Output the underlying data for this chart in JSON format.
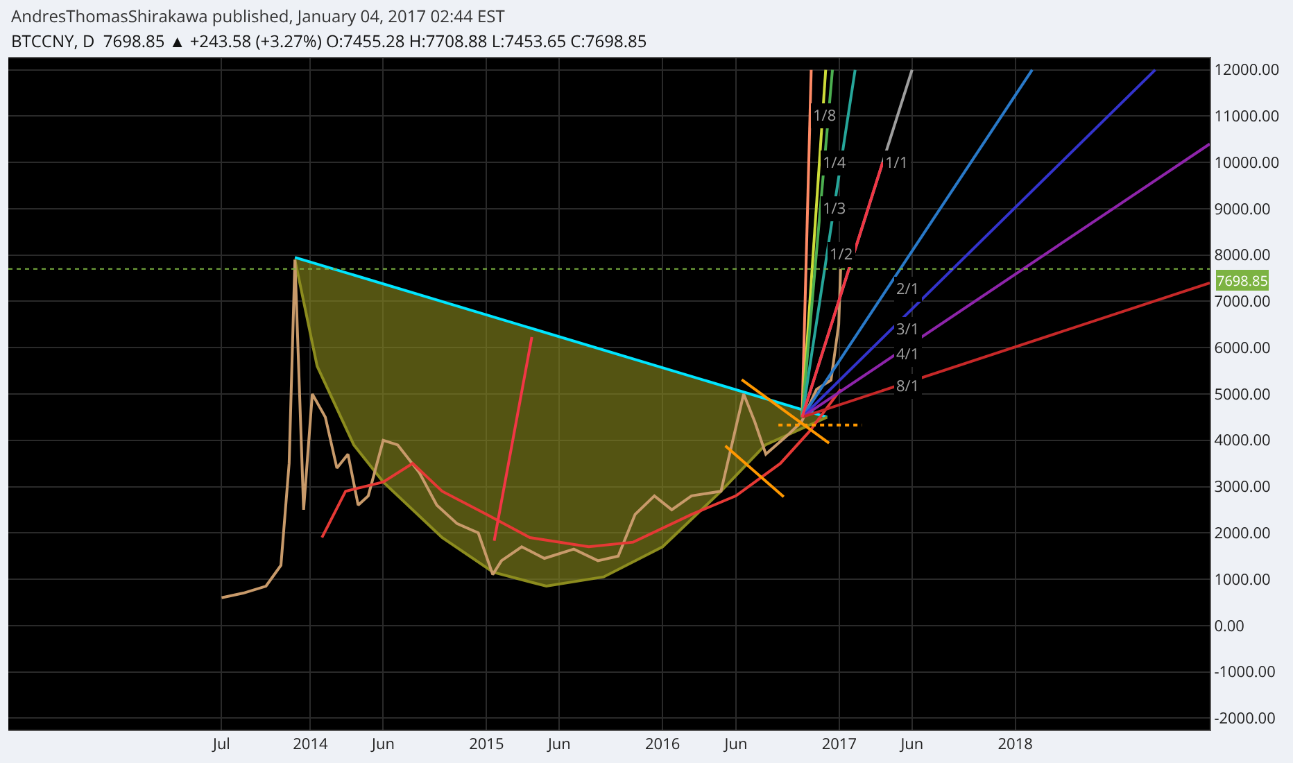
{
  "chart_data": {
    "type": "line",
    "title": "AndresThomasShirakawa published, January 04, 2017 02:44 EST",
    "subtitle": "BTCCNY, D  7698.85 ▲ +243.58 (+3.27%) O:7455.28 H:7708.88 L:7453.65 C:7698.85",
    "xlim": [
      "2012-04-15",
      "2019-02-08"
    ],
    "xticks": [
      {
        "value": "2013-07-01",
        "label": "Jul"
      },
      {
        "value": "2014-01-01",
        "label": "2014"
      },
      {
        "value": "2014-06-01",
        "label": "Jun"
      },
      {
        "value": "2015-01-01",
        "label": "2015"
      },
      {
        "value": "2015-06-01",
        "label": "Jun"
      },
      {
        "value": "2016-01-01",
        "label": "2016"
      },
      {
        "value": "2016-06-01",
        "label": "Jun"
      },
      {
        "value": "2017-01-01",
        "label": "2017"
      },
      {
        "value": "2017-06-01",
        "label": "Jun"
      },
      {
        "value": "2018-01-01",
        "label": "2018"
      }
    ],
    "ylim": [
      -2250,
      12250
    ],
    "yticks": [
      {
        "value": -2000,
        "label": "-2000.00"
      },
      {
        "value": -1000,
        "label": "-1000.00"
      },
      {
        "value": 0,
        "label": "0.00"
      },
      {
        "value": 1000,
        "label": "1000.00"
      },
      {
        "value": 2000,
        "label": "2000.00"
      },
      {
        "value": 3000,
        "label": "3000.00"
      },
      {
        "value": 4000,
        "label": "4000.00"
      },
      {
        "value": 5000,
        "label": "5000.00"
      },
      {
        "value": 6000,
        "label": "6000.00"
      },
      {
        "value": 7000,
        "label": "7000.00"
      },
      {
        "value": 8000,
        "label": "8000.00"
      },
      {
        "value": 9000,
        "label": "9000.00"
      },
      {
        "value": 10000,
        "label": "10000.00"
      },
      {
        "value": 11000,
        "label": "11000.00"
      },
      {
        "value": 12000,
        "label": "12000.00"
      }
    ],
    "grid": true,
    "ref_lines": [
      {
        "axis": "y",
        "value": 7698.85,
        "label": "7698.85",
        "color": "#7cb342",
        "line_style": "dotted"
      }
    ],
    "series": [
      {
        "color": "#00e5ff",
        "x": [
          "2013-11-30",
          "2016-12-07"
        ],
        "values": [
          7950,
          4500
        ]
      },
      {
        "type": "area",
        "color": "#8c8c1e",
        "x": [
          "2013-11-30",
          "2014-01-15",
          "2014-04-01",
          "2014-06-01",
          "2014-10-01",
          "2015-01-15",
          "2015-05-05",
          "2015-09-01",
          "2016-01-01",
          "2016-05-01",
          "2016-08-01",
          "2016-12-07"
        ],
        "values": [
          7900,
          5600,
          3900,
          3100,
          1900,
          1150,
          850,
          1050,
          1700,
          2900,
          3900,
          4500
        ]
      },
      {
        "type": "line",
        "color": "#c89a6a",
        "x": [
          "2013-07-01",
          "2013-08-15",
          "2013-10-01",
          "2013-11-01",
          "2013-11-18",
          "2013-11-30",
          "2013-12-08",
          "2013-12-18",
          "2014-01-05",
          "2014-02-01",
          "2014-02-25",
          "2014-03-20",
          "2014-04-10",
          "2014-05-01",
          "2014-06-01",
          "2014-07-01",
          "2014-08-15",
          "2014-09-20",
          "2014-11-01",
          "2014-12-15",
          "2015-01-14",
          "2015-02-01",
          "2015-03-15",
          "2015-05-01",
          "2015-07-01",
          "2015-08-20",
          "2015-10-01",
          "2015-11-05",
          "2015-12-15",
          "2016-01-20",
          "2016-03-01",
          "2016-05-01",
          "2016-06-17",
          "2016-07-10",
          "2016-08-02",
          "2016-09-15",
          "2016-10-15",
          "2016-11-15",
          "2016-12-15",
          "2016-12-31",
          "2017-01-04"
        ],
        "values": [
          600,
          700,
          850,
          1300,
          3500,
          7900,
          5500,
          2500,
          5000,
          4500,
          3400,
          3700,
          2600,
          2800,
          4000,
          3900,
          3300,
          2600,
          2200,
          2000,
          1100,
          1400,
          1700,
          1450,
          1650,
          1400,
          1500,
          2400,
          2800,
          2500,
          2800,
          2900,
          5000,
          4400,
          3700,
          4100,
          4400,
          5100,
          5300,
          6500,
          7700
        ]
      },
      {
        "type": "line",
        "color": "#e53935",
        "x": [
          "2014-01-25",
          "2014-03-15",
          "2014-06-01",
          "2014-08-01",
          "2014-10-01",
          "2015-01-01",
          "2015-04-01",
          "2015-08-01",
          "2015-11-01",
          "2016-03-01",
          "2016-06-01",
          "2016-09-01",
          "2016-11-01",
          "2017-01-04"
        ],
        "values": [
          1900,
          2900,
          3100,
          3500,
          2900,
          2400,
          1900,
          1700,
          1800,
          2400,
          2800,
          3500,
          4200,
          5100
        ]
      },
      {
        "type": "line",
        "color": "#ff9800",
        "x": [
          "2016-06-13",
          "2016-12-11"
        ],
        "values": [
          5310,
          3940
        ]
      },
      {
        "type": "line",
        "color": "#ff9800",
        "x": [
          "2016-05-10",
          "2016-09-08"
        ],
        "values": [
          3880,
          2780
        ]
      },
      {
        "type": "line",
        "color": "#ff9800",
        "line_style": "dotted",
        "x": [
          "2016-08-28",
          "2017-02-17"
        ],
        "values": [
          4330,
          4330
        ]
      },
      {
        "type": "line",
        "color": "#ff8a65",
        "x": [
          "2016-10-16",
          "2016-11-04"
        ],
        "values": [
          4500,
          12000
        ]
      },
      {
        "type": "line",
        "color": "#cddc39",
        "x": [
          "2016-10-16",
          "2016-12-04"
        ],
        "values": [
          4500,
          12000
        ]
      },
      {
        "type": "line",
        "color": "#4caf50",
        "x": [
          "2016-10-16",
          "2016-12-18"
        ],
        "values": [
          4500,
          12000
        ]
      },
      {
        "type": "line",
        "color": "#26a69a",
        "x": [
          "2016-10-16",
          "2017-02-03"
        ],
        "values": [
          4500,
          12000
        ]
      },
      {
        "type": "line",
        "color": "#9e9e9e",
        "x": [
          "2016-10-16",
          "2017-06-01"
        ],
        "values": [
          4500,
          12000
        ]
      },
      {
        "type": "line",
        "color": "#2979c8",
        "x": [
          "2016-10-16",
          "2018-02-05"
        ],
        "values": [
          4500,
          12000
        ]
      },
      {
        "type": "line",
        "color": "#3333cc",
        "x": [
          "2016-10-16",
          "2018-10-18"
        ],
        "values": [
          4500,
          12000
        ]
      },
      {
        "type": "line",
        "color": "#8e24aa",
        "x": [
          "2016-10-16",
          "2019-02-08"
        ],
        "values": [
          4500,
          10400
        ]
      },
      {
        "type": "line",
        "color": "#c62828",
        "x": [
          "2016-10-16",
          "2019-02-08"
        ],
        "values": [
          4500,
          7400
        ]
      },
      {
        "color": "#f23645",
        "x": [
          "2015-01-17",
          "2015-04-05"
        ],
        "values": [
          1830,
          6230
        ]
      },
      {
        "color": "#f23645",
        "x": [
          "2016-10-16",
          "2017-04-01"
        ],
        "values": [
          4500,
          10000
        ]
      }
    ],
    "annotations": [
      {
        "text": "1/8",
        "x": "2016-11-01",
        "y": 11000
      },
      {
        "text": "1/4",
        "x": "2016-11-21",
        "y": 10000
      },
      {
        "text": "1/3",
        "x": "2016-11-23",
        "y": 9000
      },
      {
        "text": "1/2",
        "x": "2016-12-06",
        "y": 8000
      },
      {
        "text": "1/1",
        "x": "2017-04-01",
        "y": 10000
      },
      {
        "text": "2/1",
        "x": "2017-04-22",
        "y": 7270
      },
      {
        "text": "3/1",
        "x": "2017-04-22",
        "y": 6400
      },
      {
        "text": "4/1",
        "x": "2017-04-22",
        "y": 5850
      },
      {
        "text": "8/1",
        "x": "2017-04-22",
        "y": 5150
      }
    ]
  }
}
